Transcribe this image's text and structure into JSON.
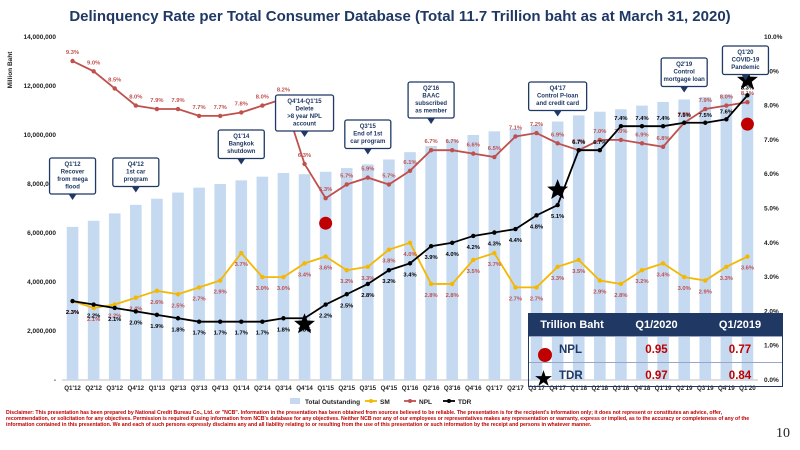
{
  "title": "Delinquency Rate per Total Consumer Database (Total 11.7 Trillion baht as at March 31, 2020)",
  "page_number": "10",
  "disclaimer": "Disclaimer: This presentation has been prepared by National Credit Bureau Co., Ltd. or \"NCB\". Information in the presentation has been obtained from sources believed to be reliable. The presentation is for the recipient's information only; it does not represent or constitutes an advice, offer, recommendation, or solicitation for any objectives. Permission is required if using information from NCB's database for any objectives. Neither NCB nor any of our employees or representatives makes any representation or warranty, express or implied, as to the accuracy or completeness of any of the information contained in this presentation. We and each of such persons expressly disclaims any and all liability relating to or resulting from the use of this presentation or such information by the receipt and persons in whatever manner.",
  "colors": {
    "bar": "#c5d9f1",
    "npl": "#c0504d",
    "sm": "#f4b800",
    "tdr": "#000000",
    "callout": "#1f3864",
    "red": "#c00000"
  },
  "chart_data": {
    "type": "bar+line",
    "categories": [
      "Q1'12",
      "Q2'12",
      "Q3'12",
      "Q4'12",
      "Q1'13",
      "Q2'13",
      "Q3'13",
      "Q4'13",
      "Q1'14",
      "Q2'14",
      "Q3'14",
      "Q4'14",
      "Q1'15",
      "Q2'15",
      "Q3'15",
      "Q4'15",
      "Q1'16",
      "Q2'16",
      "Q3'16",
      "Q4'16",
      "Q1'17",
      "Q2'17",
      "Q3'17",
      "Q4'17",
      "Q1'18",
      "Q2'18",
      "Q3'18",
      "Q4'18",
      "Q1'19",
      "Q2'19",
      "Q3'19",
      "Q4'19",
      "Q1'20"
    ],
    "ylabel_left": "Million Baht",
    "y_left_ticks": [
      "-",
      "2,000,000",
      "4,000,000",
      "6,000,000",
      "8,000,000",
      "10,000,000",
      "12,000,000",
      "14,000,000"
    ],
    "y_left_range": [
      0,
      14000000
    ],
    "y_right_ticks": [
      "0.0%",
      "1.0%",
      "2.0%",
      "3.0%",
      "4.0%",
      "5.0%",
      "6.0%",
      "7.0%",
      "8.0%",
      "9.0%",
      "10.0%"
    ],
    "y_right_range": [
      0,
      10
    ],
    "series": [
      {
        "name": "Total Outstanding",
        "axis": "left",
        "kind": "bar",
        "values": [
          6250000,
          6500000,
          6800000,
          7150000,
          7400000,
          7650000,
          7850000,
          8000000,
          8150000,
          8300000,
          8450000,
          8400000,
          8500000,
          8650000,
          8800000,
          9000000,
          9300000,
          9550000,
          9800000,
          10000000,
          10150000,
          10250000,
          10400000,
          10550000,
          10800000,
          10950000,
          11050000,
          11200000,
          11350000,
          11450000,
          11550000,
          11650000,
          11700000
        ]
      },
      {
        "name": "NPL",
        "axis": "right",
        "kind": "line",
        "values": [
          9.3,
          9.0,
          8.5,
          8.0,
          7.9,
          7.9,
          7.7,
          7.7,
          7.8,
          8.0,
          8.2,
          6.3,
          5.3,
          5.7,
          5.9,
          5.7,
          6.1,
          6.7,
          6.7,
          6.6,
          6.5,
          7.1,
          7.2,
          6.9,
          6.7,
          7.0,
          7.0,
          6.9,
          6.8,
          7.5,
          7.9,
          8.0,
          8.1
        ],
        "labels": [
          "9.3%",
          "9.0%",
          "8.5%",
          "8.0%",
          "7.9%",
          "7.9%",
          "7.7%",
          "7.7%",
          "7.8%",
          "8.0%",
          "8.2%",
          "6.3%",
          "5.3%",
          "5.7%",
          "5.9%",
          "5.7%",
          "6.1%",
          "6.7%",
          "6.7%",
          "6.6%",
          "6.5%",
          "7.1%",
          "7.2%",
          "6.9%",
          "6.7%",
          "7.0%",
          "7.0%",
          "6.9%",
          "6.8%",
          "7.5%",
          "7.9%",
          "8.0%",
          "8.1%"
        ]
      },
      {
        "name": "SM",
        "axis": "right",
        "kind": "line",
        "values": [
          2.3,
          2.1,
          2.2,
          2.4,
          2.6,
          2.5,
          2.7,
          2.9,
          3.7,
          3.0,
          3.0,
          3.4,
          3.6,
          3.2,
          3.3,
          3.8,
          4.0,
          2.8,
          2.8,
          3.5,
          3.7,
          2.7,
          2.7,
          3.3,
          3.5,
          2.9,
          2.8,
          3.2,
          3.4,
          3.0,
          2.9,
          3.3,
          3.6
        ],
        "labels": [
          "2.3%",
          "2.1%",
          "2.2%",
          "2.4%",
          "2.6%",
          "2.5%",
          "2.7%",
          "2.9%",
          "3.7%",
          "3.0%",
          "3.0%",
          "3.4%",
          "3.6%",
          "3.2%",
          "3.3%",
          "3.8%",
          "4.0%",
          "2.8%",
          "2.8%",
          "3.5%",
          "3.7%",
          "2.7%",
          "2.7%",
          "3.3%",
          "3.5%",
          "2.9%",
          "2.8%",
          "3.2%",
          "3.4%",
          "3.0%",
          "2.9%",
          "3.3%",
          "3.6%"
        ]
      },
      {
        "name": "TDR",
        "axis": "right",
        "kind": "line",
        "values": [
          2.3,
          2.2,
          2.1,
          2.0,
          1.9,
          1.8,
          1.7,
          1.7,
          1.7,
          1.7,
          1.8,
          1.8,
          2.2,
          2.5,
          2.8,
          3.2,
          3.4,
          3.9,
          4.0,
          4.2,
          4.3,
          4.4,
          4.8,
          5.1,
          6.7,
          6.7,
          7.4,
          7.4,
          7.4,
          7.5,
          7.5,
          7.6,
          8.3
        ],
        "labels": [
          "2.3%",
          "2.2%",
          "2.1%",
          "2.0%",
          "1.9%",
          "1.8%",
          "1.7%",
          "1.7%",
          "1.7%",
          "1.7%",
          "1.8%",
          "1.8%",
          "2.2%",
          "2.5%",
          "2.8%",
          "3.2%",
          "3.4%",
          "3.9%",
          "4.0%",
          "4.2%",
          "4.3%",
          "4.4%",
          "4.8%",
          "5.1%",
          "6.7%",
          "6.7%",
          "7.4%",
          "7.4%",
          "7.4%",
          "7.5%",
          "7.5%",
          "7.6%",
          "8.3%"
        ]
      }
    ],
    "legend": [
      "Total Outstanding",
      "SM",
      "NPL",
      "TDR"
    ],
    "annotations": [
      {
        "category": "Q1'12",
        "lines": [
          "Q1'12",
          "Recover",
          "from mega",
          "flood"
        ]
      },
      {
        "category": "Q4'12",
        "lines": [
          "Q4'12",
          "1st car",
          "program"
        ]
      },
      {
        "category": "Q1'14",
        "lines": [
          "Q1'14",
          "Bangkok",
          "shutdown"
        ]
      },
      {
        "category": "Q4'14",
        "lines": [
          "Q4'14-Q1'15",
          "Delete",
          ">8 year NPL",
          "account"
        ]
      },
      {
        "category": "Q3'15",
        "lines": [
          "Q3'15",
          "End of 1st",
          "car program"
        ]
      },
      {
        "category": "Q2'16",
        "lines": [
          "Q2'16",
          "BAAC",
          "subscribed",
          "as member"
        ]
      },
      {
        "category": "Q4'17",
        "lines": [
          "Q4'17",
          "Control P-loan",
          "and credit card"
        ]
      },
      {
        "category": "Q2'19",
        "lines": [
          "Q2'19",
          "Control",
          "mortgage loan"
        ]
      },
      {
        "category": "Q1'20",
        "lines": [
          "Q1'20",
          "COVID-19",
          "Pandemic"
        ]
      }
    ],
    "highlight_markers": [
      {
        "series": "NPL",
        "category": "Q1'15",
        "value": 5.3,
        "marker": "dot"
      },
      {
        "series": "NPL",
        "category": "Q1'20",
        "value": 8.1,
        "marker": "dot"
      },
      {
        "series": "TDR",
        "category": "Q4'14",
        "value": 1.8,
        "marker": "star"
      },
      {
        "series": "TDR",
        "category": "Q4'17",
        "value": 5.1,
        "marker": "star"
      },
      {
        "series": "TDR",
        "category": "Q1'20",
        "value": 8.3,
        "marker": "star"
      }
    ]
  },
  "summary_table": {
    "headers": [
      "Trillion Baht",
      "Q1/2020",
      "Q1/2019"
    ],
    "rows": [
      {
        "label": "NPL",
        "q1_2020": "0.95",
        "q1_2019": "0.77"
      },
      {
        "label": "TDR",
        "q1_2020": "0.97",
        "q1_2019": "0.84"
      }
    ]
  }
}
